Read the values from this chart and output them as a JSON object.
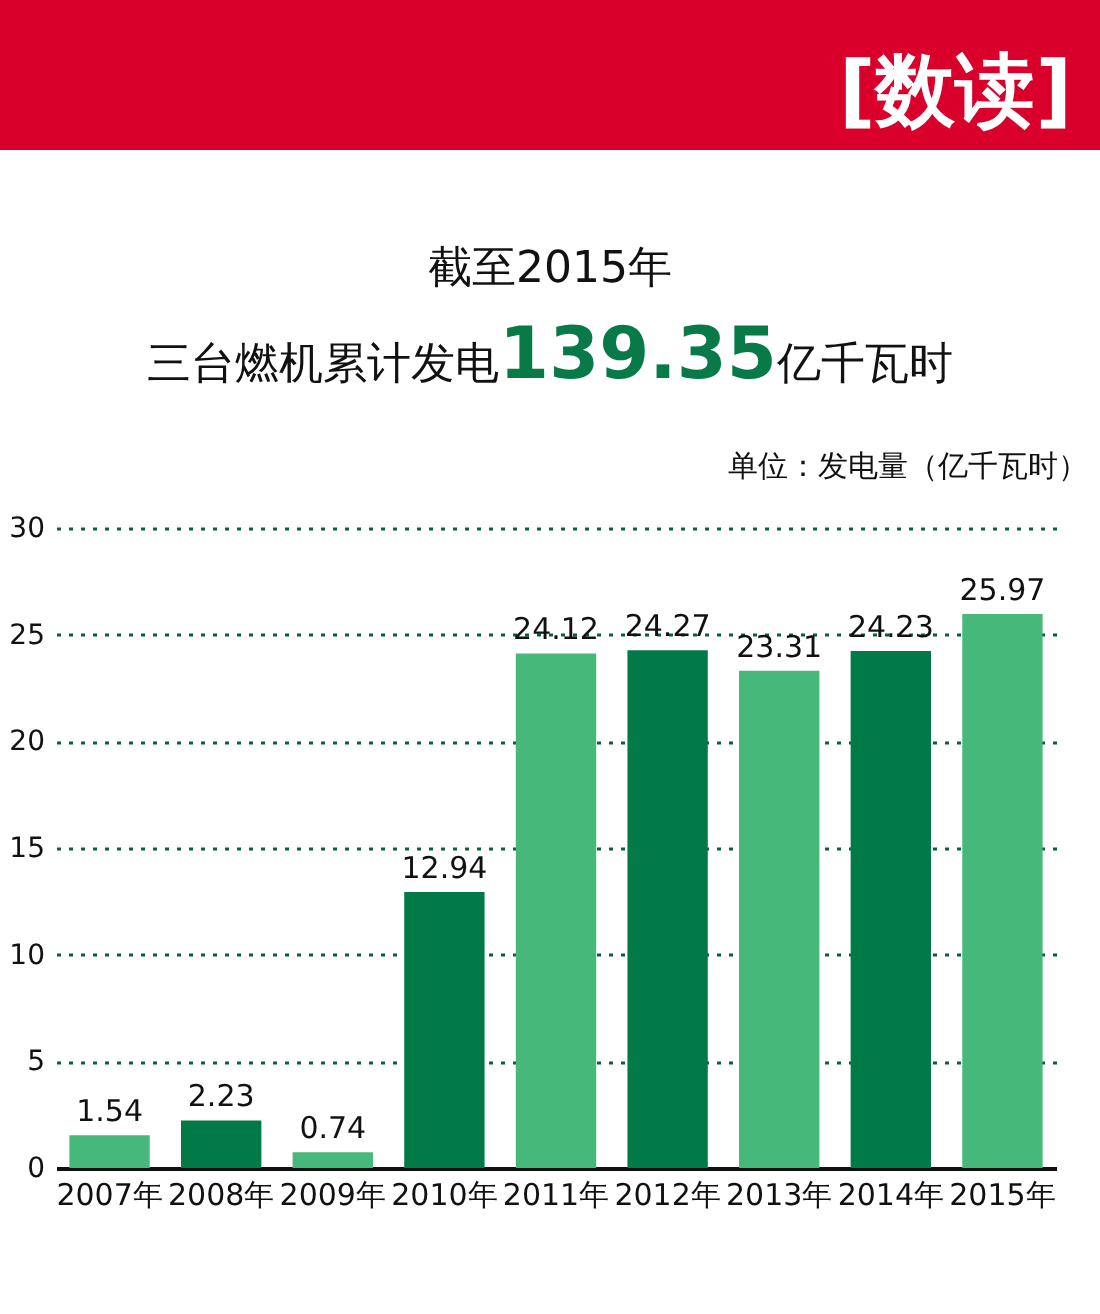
{
  "chart_data": {
    "type": "bar",
    "title": "截至2015年",
    "subtitle": "三台燃机累计发电139.35亿千瓦时",
    "annotations": [
      "[数读]",
      "单位：发电量（亿千瓦时）"
    ],
    "categories": [
      "2007年",
      "2008年",
      "2009年",
      "2010年",
      "2011年",
      "2012年",
      "2013年",
      "2014年",
      "2015年"
    ],
    "values": [
      1.54,
      2.23,
      0.74,
      12.94,
      24.12,
      24.27,
      23.31,
      24.23,
      25.97
    ],
    "colors": [
      "#46b87a",
      "#027a48",
      "#46b87a",
      "#027a48",
      "#46b87a",
      "#027a48",
      "#46b87a",
      "#027a48",
      "#46b87a"
    ],
    "ylim": [
      0,
      30
    ],
    "yticks": [
      0,
      5,
      10,
      15,
      20,
      25,
      30
    ],
    "grid": "y",
    "data_labels": true
  }
}
